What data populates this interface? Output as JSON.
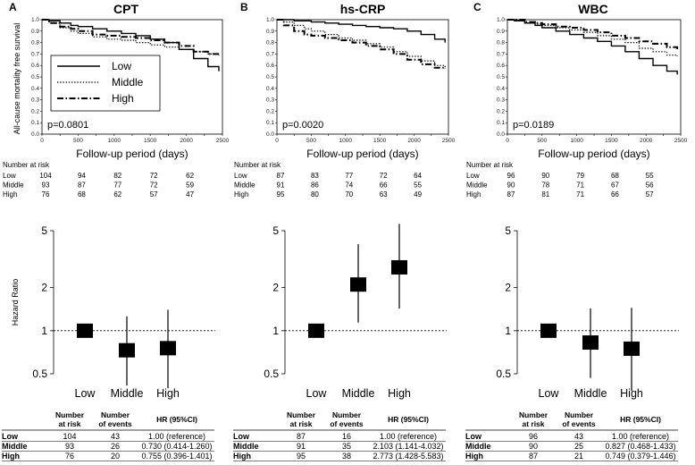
{
  "figure": {
    "y_axis_label_km": "All-cause mortality free survival",
    "x_axis_label_km": "Follow-up period (days)",
    "y_axis_label_hr": "Hazard Ratio",
    "risk_header": "Number at risk",
    "legend": [
      "Low",
      "Middle",
      "High"
    ],
    "table_headers": {
      "n_line1": "Number",
      "n_line2": "at risk",
      "e_line1": "Number",
      "e_line2": "of events",
      "hr": "HR (95%CI)"
    }
  },
  "chart_data": [
    {
      "type": "line",
      "panel": "A",
      "title": "CPT",
      "pvalue": "p=0.0801",
      "xlabel": "Follow-up period (days)",
      "ylabel": "All-cause mortality free survival",
      "xlim": [
        0,
        2500
      ],
      "ylim": [
        0.0,
        1.0
      ],
      "xticks": [
        "0",
        "250",
        "500",
        "750",
        "1000",
        "1250",
        "1500",
        "1750",
        "2000",
        "2250",
        "2500"
      ],
      "yticks": [
        "0.0",
        "0.1",
        "0.2",
        "0.3",
        "0.4",
        "0.5",
        "0.6",
        "0.7",
        "0.8",
        "0.9",
        "1.0"
      ],
      "series": [
        {
          "name": "Low",
          "x": [
            0,
            100,
            250,
            400,
            500,
            700,
            900,
            1100,
            1300,
            1500,
            1700,
            1900,
            2100,
            2300,
            2450
          ],
          "y": [
            1.0,
            0.99,
            0.97,
            0.95,
            0.94,
            0.92,
            0.9,
            0.88,
            0.86,
            0.83,
            0.8,
            0.74,
            0.66,
            0.59,
            0.55
          ]
        },
        {
          "name": "Middle",
          "x": [
            0,
            100,
            250,
            400,
            500,
            700,
            900,
            1100,
            1300,
            1500,
            1700,
            1900,
            2100,
            2300,
            2450
          ],
          "y": [
            1.0,
            0.97,
            0.93,
            0.9,
            0.88,
            0.85,
            0.83,
            0.82,
            0.8,
            0.78,
            0.76,
            0.74,
            0.72,
            0.7,
            0.69
          ]
        },
        {
          "name": "High",
          "x": [
            0,
            100,
            250,
            400,
            500,
            700,
            900,
            1100,
            1300,
            1500,
            1700,
            1900,
            2100,
            2300,
            2450
          ],
          "y": [
            1.0,
            0.97,
            0.94,
            0.92,
            0.9,
            0.87,
            0.86,
            0.85,
            0.84,
            0.82,
            0.8,
            0.77,
            0.72,
            0.7,
            0.7
          ]
        }
      ],
      "number_at_risk": {
        "Low": [
          "104",
          "94",
          "82",
          "72",
          "62"
        ],
        "Middle": [
          "93",
          "87",
          "77",
          "72",
          "59"
        ],
        "High": [
          "76",
          "68",
          "62",
          "57",
          "47"
        ]
      },
      "hazard_ratio": {
        "categories": [
          "Low",
          "Middle",
          "High"
        ],
        "hr": [
          1.0,
          0.73,
          0.755
        ],
        "ci_low": [
          1.0,
          0.414,
          0.396
        ],
        "ci_high": [
          1.0,
          1.26,
          1.401
        ],
        "yticks": [
          "0.5",
          "1",
          "2",
          "5"
        ]
      },
      "table": [
        {
          "group": "Low",
          "n": "104",
          "events": "43",
          "hr": "1.00 (reference)"
        },
        {
          "group": "Middle",
          "n": "93",
          "events": "26",
          "hr": "0.730 (0.414-1.260)"
        },
        {
          "group": "High",
          "n": "76",
          "events": "20",
          "hr": "0.755 (0.396-1.401)"
        }
      ]
    },
    {
      "type": "line",
      "panel": "B",
      "title": "hs-CRP",
      "pvalue": "p=0.0020",
      "xlabel": "Follow-up period (days)",
      "ylabel": "",
      "xlim": [
        0,
        2500
      ],
      "ylim": [
        0.0,
        1.0
      ],
      "xticks": [
        "0",
        "250",
        "500",
        "750",
        "1000",
        "1250",
        "1500",
        "1750",
        "2000",
        "2250",
        "2500"
      ],
      "yticks": [
        "0.0",
        "0.1",
        "0.2",
        "0.3",
        "0.4",
        "0.5",
        "0.6",
        "0.7",
        "0.8",
        "0.9",
        "1.0"
      ],
      "series": [
        {
          "name": "Low",
          "x": [
            0,
            100,
            250,
            400,
            500,
            700,
            900,
            1100,
            1300,
            1500,
            1700,
            1900,
            2100,
            2300,
            2450
          ],
          "y": [
            1.0,
            1.0,
            0.99,
            0.99,
            0.98,
            0.97,
            0.96,
            0.95,
            0.94,
            0.93,
            0.92,
            0.9,
            0.87,
            0.83,
            0.8
          ]
        },
        {
          "name": "Middle",
          "x": [
            0,
            100,
            250,
            400,
            500,
            700,
            900,
            1100,
            1300,
            1500,
            1700,
            1900,
            2100,
            2300,
            2450
          ],
          "y": [
            1.0,
            0.98,
            0.95,
            0.92,
            0.9,
            0.87,
            0.84,
            0.82,
            0.79,
            0.76,
            0.72,
            0.68,
            0.64,
            0.6,
            0.58
          ]
        },
        {
          "name": "High",
          "x": [
            0,
            100,
            250,
            400,
            500,
            700,
            900,
            1100,
            1300,
            1500,
            1700,
            1900,
            2100,
            2300,
            2450
          ],
          "y": [
            1.0,
            0.95,
            0.9,
            0.87,
            0.86,
            0.84,
            0.82,
            0.8,
            0.77,
            0.74,
            0.7,
            0.65,
            0.61,
            0.58,
            0.57
          ]
        }
      ],
      "number_at_risk": {
        "Low": [
          "87",
          "83",
          "77",
          "72",
          "64"
        ],
        "Middle": [
          "91",
          "86",
          "74",
          "66",
          "55"
        ],
        "High": [
          "95",
          "80",
          "70",
          "63",
          "49"
        ]
      },
      "hazard_ratio": {
        "categories": [
          "Low",
          "Middle",
          "High"
        ],
        "hr": [
          1.0,
          2.103,
          2.773
        ],
        "ci_low": [
          1.0,
          1.141,
          1.428
        ],
        "ci_high": [
          1.0,
          4.032,
          5.583
        ],
        "yticks": [
          "0.5",
          "1",
          "2",
          "5"
        ]
      },
      "table": [
        {
          "group": "Low",
          "n": "87",
          "events": "16",
          "hr": "1.00 (reference)"
        },
        {
          "group": "Middle",
          "n": "91",
          "events": "35",
          "hr": "2.103 (1.141-4.032)"
        },
        {
          "group": "High",
          "n": "95",
          "events": "38",
          "hr": "2.773 (1.428-5.583)"
        }
      ]
    },
    {
      "type": "line",
      "panel": "C",
      "title": "WBC",
      "pvalue": "p=0.0189",
      "xlabel": "Follow-up period (days)",
      "ylabel": "",
      "xlim": [
        0,
        2500
      ],
      "ylim": [
        0.0,
        1.0
      ],
      "xticks": [
        "0",
        "250",
        "500",
        "750",
        "1000",
        "1250",
        "1500",
        "1750",
        "2000",
        "2250",
        "2500"
      ],
      "yticks": [
        "0.0",
        "0.1",
        "0.2",
        "0.3",
        "0.4",
        "0.5",
        "0.6",
        "0.7",
        "0.8",
        "0.9",
        "1.0"
      ],
      "series": [
        {
          "name": "Low",
          "x": [
            0,
            100,
            250,
            400,
            500,
            700,
            900,
            1100,
            1300,
            1500,
            1700,
            1900,
            2100,
            2300,
            2450
          ],
          "y": [
            1.0,
            0.99,
            0.97,
            0.95,
            0.93,
            0.9,
            0.87,
            0.84,
            0.81,
            0.77,
            0.72,
            0.66,
            0.6,
            0.55,
            0.52
          ]
        },
        {
          "name": "Middle",
          "x": [
            0,
            100,
            250,
            400,
            500,
            700,
            900,
            1100,
            1300,
            1500,
            1700,
            1900,
            2100,
            2300,
            2450
          ],
          "y": [
            1.0,
            0.99,
            0.97,
            0.96,
            0.95,
            0.93,
            0.91,
            0.89,
            0.86,
            0.83,
            0.8,
            0.75,
            0.72,
            0.69,
            0.68
          ]
        },
        {
          "name": "High",
          "x": [
            0,
            100,
            250,
            400,
            500,
            700,
            900,
            1100,
            1300,
            1500,
            1700,
            1900,
            2100,
            2300,
            2450
          ],
          "y": [
            1.0,
            1.0,
            0.98,
            0.97,
            0.96,
            0.94,
            0.93,
            0.91,
            0.89,
            0.86,
            0.84,
            0.81,
            0.79,
            0.76,
            0.74
          ]
        }
      ],
      "number_at_risk": {
        "Low": [
          "96",
          "90",
          "79",
          "68",
          "55"
        ],
        "Middle": [
          "90",
          "78",
          "71",
          "67",
          "56"
        ],
        "High": [
          "87",
          "81",
          "71",
          "66",
          "57"
        ]
      },
      "hazard_ratio": {
        "categories": [
          "Low",
          "Middle",
          "High"
        ],
        "hr": [
          1.0,
          0.827,
          0.749
        ],
        "ci_low": [
          1.0,
          0.468,
          0.379
        ],
        "ci_high": [
          1.0,
          1.433,
          1.446
        ],
        "yticks": [
          "0.5",
          "1",
          "2",
          "5"
        ]
      },
      "table": [
        {
          "group": "Low",
          "n": "96",
          "events": "43",
          "hr": "1.00 (reference)"
        },
        {
          "group": "Middle",
          "n": "90",
          "events": "25",
          "hr": "0.827 (0.468-1.433)"
        },
        {
          "group": "High",
          "n": "87",
          "events": "21",
          "hr": "0.749 (0.379-1.446)"
        }
      ]
    }
  ]
}
